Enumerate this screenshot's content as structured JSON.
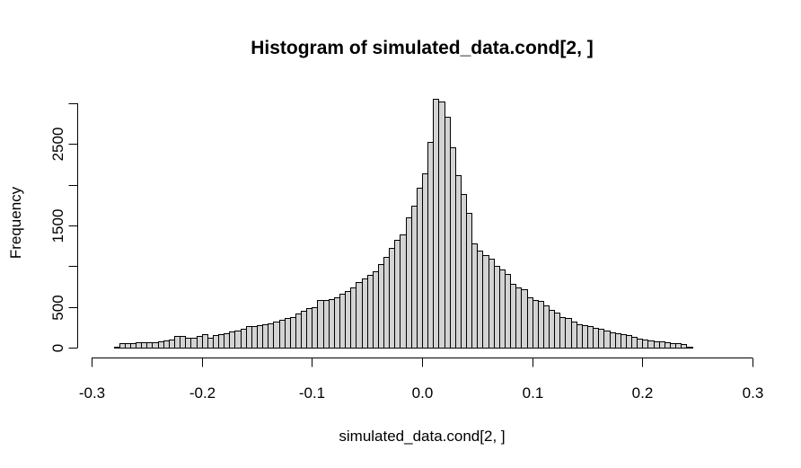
{
  "chart_data": {
    "type": "bar",
    "title": "Histogram of simulated_data.cond[2, ]",
    "xlabel": "simulated_data.cond[2, ]",
    "ylabel": "Frequency",
    "xlim": [
      -0.3,
      0.3
    ],
    "ylim": [
      0,
      3000
    ],
    "bar_color": "#D3D3D3",
    "bin_width": 0.005,
    "bin_start": -0.28,
    "x_ticks": [
      -0.3,
      -0.2,
      -0.1,
      0.0,
      0.1,
      0.2,
      0.3
    ],
    "x_tick_labels": [
      "-0.3",
      "-0.2",
      "-0.1",
      "0.0",
      "0.1",
      "0.2",
      "0.3"
    ],
    "y_ticks": [
      0,
      500,
      1000,
      1500,
      2000,
      2500,
      3000
    ],
    "y_tick_labels": [
      "0",
      "500",
      "",
      "1500",
      "",
      "2500",
      ""
    ],
    "values": [
      10,
      60,
      60,
      60,
      65,
      65,
      65,
      70,
      80,
      90,
      100,
      140,
      140,
      120,
      120,
      140,
      160,
      120,
      150,
      170,
      180,
      200,
      210,
      230,
      260,
      270,
      280,
      290,
      300,
      320,
      340,
      360,
      380,
      420,
      450,
      480,
      500,
      580,
      580,
      600,
      620,
      660,
      700,
      740,
      800,
      850,
      890,
      940,
      1030,
      1110,
      1220,
      1320,
      1390,
      1600,
      1740,
      1960,
      2140,
      2530,
      3050,
      3020,
      2830,
      2460,
      2120,
      1890,
      1650,
      1280,
      1190,
      1140,
      1090,
      1000,
      960,
      900,
      780,
      740,
      720,
      620,
      590,
      570,
      520,
      460,
      430,
      380,
      360,
      320,
      290,
      280,
      260,
      240,
      230,
      210,
      190,
      180,
      160,
      150,
      130,
      110,
      100,
      90,
      80,
      75,
      70,
      60,
      50,
      40,
      10
    ]
  }
}
